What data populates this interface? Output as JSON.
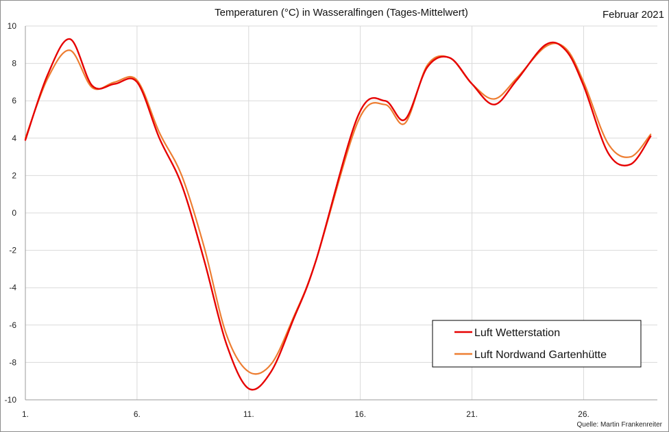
{
  "chart_data": {
    "type": "line",
    "title": "Temperaturen (°C) in Wasseralfingen (Tages-Mittelwert)",
    "period": "Februar 2021",
    "source": "Quelle: Martin Frankenreiter",
    "xlabel": "",
    "ylabel": "",
    "x": [
      1,
      2,
      3,
      4,
      5,
      6,
      7,
      8,
      9,
      10,
      11,
      12,
      13,
      14,
      15,
      16,
      17,
      18,
      19,
      20,
      21,
      22,
      23,
      24,
      25,
      26,
      27,
      28,
      29
    ],
    "x_tick_labels": [
      "1.",
      "6.",
      "11.",
      "16.",
      "21.",
      "26."
    ],
    "x_tick_values": [
      1,
      6,
      11,
      16,
      21,
      26
    ],
    "xlim": [
      1,
      29.3
    ],
    "ylim": [
      -10,
      10
    ],
    "y_ticks": [
      10,
      8,
      6,
      4,
      2,
      0,
      -2,
      -4,
      -6,
      -8,
      -10
    ],
    "y_tick_labels": [
      "10",
      "8",
      "6",
      "4",
      "2",
      "0",
      "-2",
      "-4",
      "-6",
      "-8",
      "-10"
    ],
    "grid": true,
    "legend_position": "bottom-right",
    "series": [
      {
        "name": "Luft Wetterstation",
        "color": "#e60000",
        "values": [
          3.9,
          7.4,
          9.3,
          6.8,
          6.9,
          7.0,
          4.0,
          1.5,
          -2.5,
          -7.0,
          -9.4,
          -8.5,
          -5.7,
          -2.6,
          5.2,
          6.0,
          5.0,
          7.8,
          8.3,
          6.9,
          5.8,
          7.1,
          9.0,
          8.7,
          6.8,
          3.2,
          2.6,
          4.1
        ],
        "x_values": [
          1,
          2,
          3,
          4,
          5,
          6,
          7,
          8,
          9,
          10,
          11,
          12,
          13,
          14,
          15.9,
          17.1,
          18.0,
          19.0,
          20.0,
          21.0,
          22.0,
          23.0,
          24.3,
          25.2,
          26.0,
          27.1,
          28.1,
          29.0
        ]
      },
      {
        "name": "Luft Nordwand Gartenhütte",
        "color": "#ed7d31",
        "values": [
          4.0,
          7.2,
          8.7,
          6.7,
          7.0,
          7.1,
          4.3,
          2.0,
          -1.8,
          -6.5,
          -8.5,
          -8.1,
          -5.6,
          -2.6,
          4.9,
          5.8,
          4.8,
          7.9,
          8.3,
          6.9,
          6.1,
          7.2,
          8.9,
          8.8,
          7.0,
          3.7,
          3.0,
          4.2
        ],
        "x_values": [
          1,
          2,
          3,
          4,
          5,
          6,
          7,
          8,
          9,
          10,
          11,
          12,
          13,
          14,
          15.9,
          17.1,
          18.0,
          19.0,
          20.0,
          21.0,
          22.0,
          23.0,
          24.3,
          25.2,
          26.0,
          27.1,
          28.1,
          29.0
        ]
      }
    ]
  }
}
